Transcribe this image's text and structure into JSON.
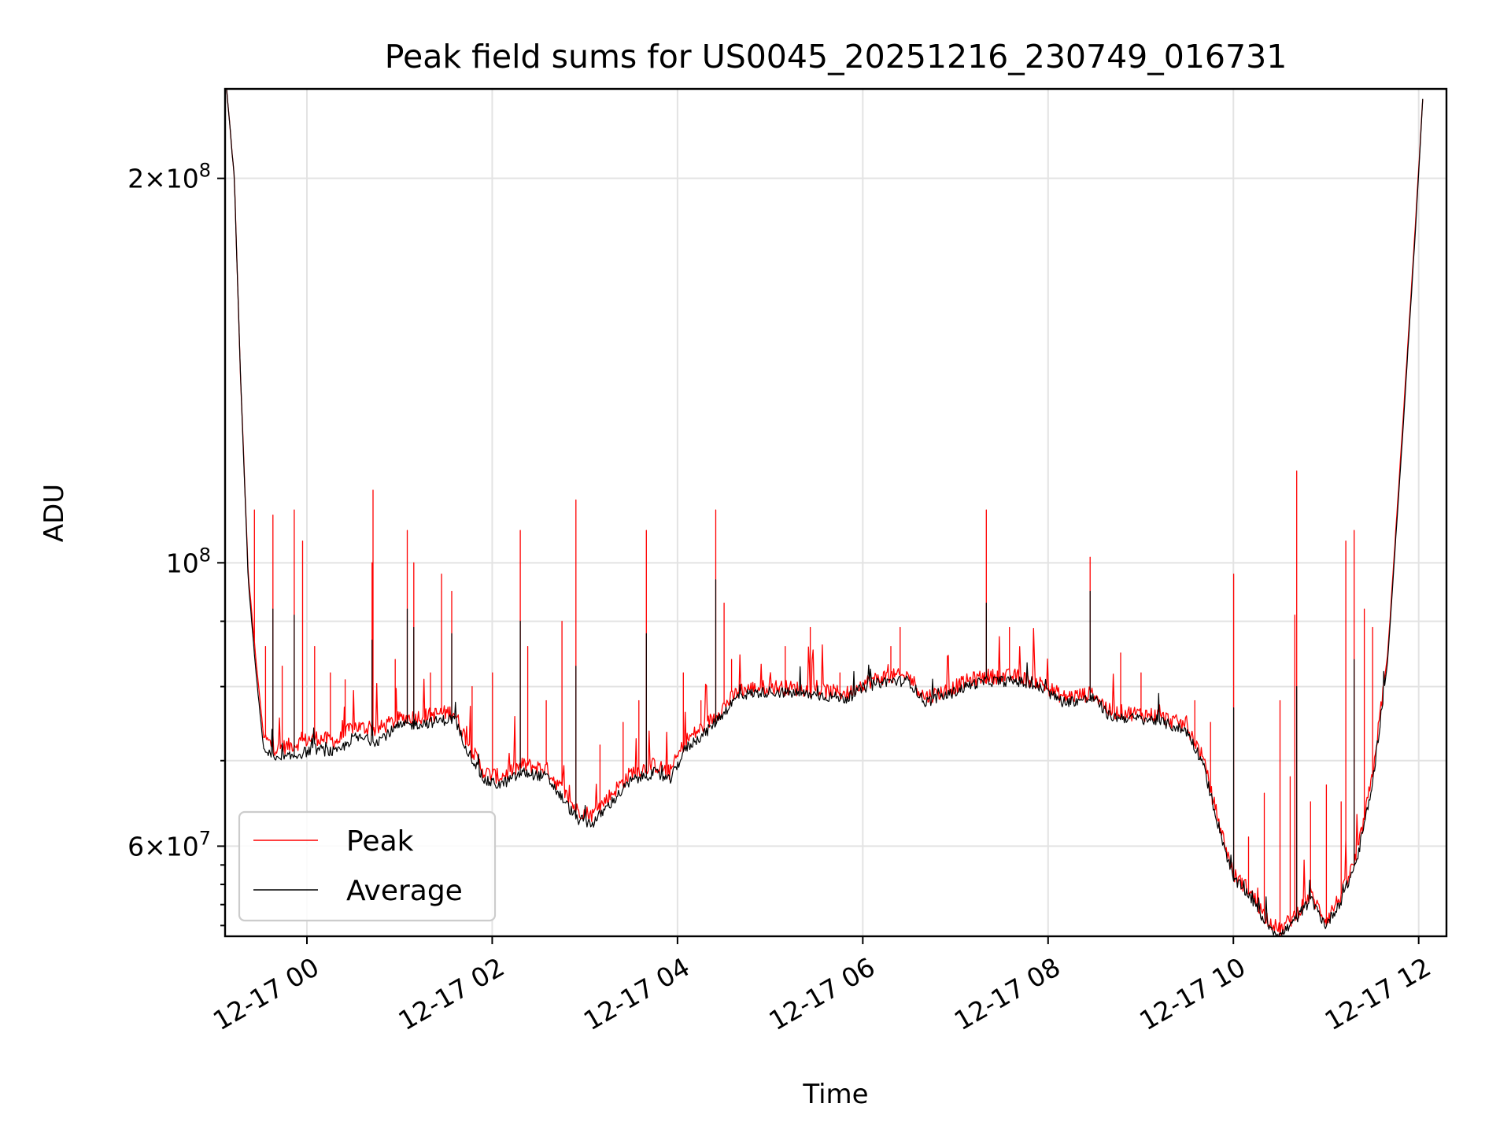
{
  "chart_data": {
    "type": "line",
    "title": "Peak field sums for US0045_20251216_230749_016731",
    "xlabel": "Time",
    "ylabel": "ADU",
    "y_scale": "log",
    "xlim": [
      "2025-12-16 23:07",
      "2025-12-17 12:18"
    ],
    "ylim": [
      51000000,
      235000000
    ],
    "grid": true,
    "legend_position": "lower-left",
    "x_ticks": [
      {
        "value": "2025-12-17 00:00",
        "label": "12-17 00"
      },
      {
        "value": "2025-12-17 02:00",
        "label": "12-17 02"
      },
      {
        "value": "2025-12-17 04:00",
        "label": "12-17 04"
      },
      {
        "value": "2025-12-17 06:00",
        "label": "12-17 06"
      },
      {
        "value": "2025-12-17 08:00",
        "label": "12-17 08"
      },
      {
        "value": "2025-12-17 10:00",
        "label": "12-17 10"
      },
      {
        "value": "2025-12-17 12:00",
        "label": "12-17 12"
      }
    ],
    "y_major_ticks": [
      {
        "value": 60000000,
        "mantissa": "6",
        "exponent": "7"
      },
      {
        "value": 100000000,
        "mantissa": "",
        "exponent": "8"
      },
      {
        "value": 200000000,
        "mantissa": "2",
        "exponent": "8"
      }
    ],
    "y_minor_ticks": [
      70000000,
      80000000,
      90000000
    ],
    "series": [
      {
        "name": "Peak",
        "color": "#ff0000",
        "baseline": [
          [
            "2025-12-16 23:08",
            235000000
          ],
          [
            "2025-12-16 23:13",
            200000000
          ],
          [
            "2025-12-16 23:17",
            140000000
          ],
          [
            "2025-12-16 23:22",
            98000000
          ],
          [
            "2025-12-16 23:27",
            84000000
          ],
          [
            "2025-12-16 23:32",
            73000000
          ],
          [
            "2025-12-16 23:40",
            71500000
          ],
          [
            "2025-12-16 23:50",
            72000000
          ],
          [
            "2025-12-17 00:05",
            73000000
          ],
          [
            "2025-12-17 00:20",
            72500000
          ],
          [
            "2025-12-17 00:30",
            74500000
          ],
          [
            "2025-12-17 00:45",
            74000000
          ],
          [
            "2025-12-17 01:00",
            75500000
          ],
          [
            "2025-12-17 01:20",
            76000000
          ],
          [
            "2025-12-17 01:35",
            76500000
          ],
          [
            "2025-12-17 01:45",
            72000000
          ],
          [
            "2025-12-17 01:55",
            68500000
          ],
          [
            "2025-12-17 02:05",
            68000000
          ],
          [
            "2025-12-17 02:20",
            69500000
          ],
          [
            "2025-12-17 02:35",
            69000000
          ],
          [
            "2025-12-17 02:45",
            66500000
          ],
          [
            "2025-12-17 02:55",
            64000000
          ],
          [
            "2025-12-17 03:05",
            63500000
          ],
          [
            "2025-12-17 03:15",
            65500000
          ],
          [
            "2025-12-17 03:30",
            68500000
          ],
          [
            "2025-12-17 03:45",
            69500000
          ],
          [
            "2025-12-17 03:55",
            68500000
          ],
          [
            "2025-12-17 04:05",
            72500000
          ],
          [
            "2025-12-17 04:20",
            75000000
          ],
          [
            "2025-12-17 04:40",
            79500000
          ],
          [
            "2025-12-17 05:00",
            80000000
          ],
          [
            "2025-12-17 05:30",
            79500000
          ],
          [
            "2025-12-17 05:50",
            79000000
          ],
          [
            "2025-12-17 06:00",
            80500000
          ],
          [
            "2025-12-17 06:15",
            81500000
          ],
          [
            "2025-12-17 06:30",
            81500000
          ],
          [
            "2025-12-17 06:40",
            78500000
          ],
          [
            "2025-12-17 06:55",
            79500000
          ],
          [
            "2025-12-17 07:10",
            81000000
          ],
          [
            "2025-12-17 07:20",
            81500000
          ],
          [
            "2025-12-17 07:40",
            81500000
          ],
          [
            "2025-12-17 07:55",
            80500000
          ],
          [
            "2025-12-17 08:10",
            78500000
          ],
          [
            "2025-12-17 08:30",
            79000000
          ],
          [
            "2025-12-17 08:40",
            76500000
          ],
          [
            "2025-12-17 09:10",
            76000000
          ],
          [
            "2025-12-17 09:30",
            74500000
          ],
          [
            "2025-12-17 09:40",
            70500000
          ],
          [
            "2025-12-17 09:50",
            63000000
          ],
          [
            "2025-12-17 10:00",
            57000000
          ],
          [
            "2025-12-17 10:10",
            55500000
          ],
          [
            "2025-12-17 10:20",
            53000000
          ],
          [
            "2025-12-17 10:30",
            51500000
          ],
          [
            "2025-12-17 10:40",
            53000000
          ],
          [
            "2025-12-17 10:50",
            55000000
          ],
          [
            "2025-12-17 11:00",
            52500000
          ],
          [
            "2025-12-17 11:10",
            55000000
          ],
          [
            "2025-12-17 11:20",
            59000000
          ],
          [
            "2025-12-17 11:30",
            68000000
          ],
          [
            "2025-12-17 11:40",
            85000000
          ],
          [
            "2025-12-17 11:50",
            130000000
          ],
          [
            "2025-12-17 11:58",
            185000000
          ],
          [
            "2025-12-17 12:03",
            235000000
          ]
        ],
        "spikes": [
          [
            "2025-12-16 23:26",
            110000000
          ],
          [
            "2025-12-16 23:33",
            86000000
          ],
          [
            "2025-12-16 23:38",
            109000000
          ],
          [
            "2025-12-16 23:44",
            83000000
          ],
          [
            "2025-12-16 23:52",
            110000000
          ],
          [
            "2025-12-16 23:57",
            104000000
          ],
          [
            "2025-12-17 00:05",
            86000000
          ],
          [
            "2025-12-17 00:15",
            82000000
          ],
          [
            "2025-12-17 00:25",
            81000000
          ],
          [
            "2025-12-17 00:42",
            100000000
          ],
          [
            "2025-12-17 00:43",
            114000000
          ],
          [
            "2025-12-17 00:57",
            84000000
          ],
          [
            "2025-12-17 01:05",
            106000000
          ],
          [
            "2025-12-17 01:09",
            100000000
          ],
          [
            "2025-12-17 01:20",
            82000000
          ],
          [
            "2025-12-17 01:27",
            98000000
          ],
          [
            "2025-12-17 01:34",
            95000000
          ],
          [
            "2025-12-17 01:47",
            80000000
          ],
          [
            "2025-12-17 02:00",
            82000000
          ],
          [
            "2025-12-17 02:18",
            106000000
          ],
          [
            "2025-12-17 02:23",
            86000000
          ],
          [
            "2025-12-17 02:35",
            78000000
          ],
          [
            "2025-12-17 02:45",
            90000000
          ],
          [
            "2025-12-17 02:54",
            112000000
          ],
          [
            "2025-12-17 03:10",
            72000000
          ],
          [
            "2025-12-17 03:25",
            75000000
          ],
          [
            "2025-12-17 03:35",
            78000000
          ],
          [
            "2025-12-17 03:40",
            106000000
          ],
          [
            "2025-12-17 04:04",
            82000000
          ],
          [
            "2025-12-17 04:15",
            78000000
          ],
          [
            "2025-12-17 04:25",
            110000000
          ],
          [
            "2025-12-17 04:30",
            93000000
          ],
          [
            "2025-12-17 04:35",
            84000000
          ],
          [
            "2025-12-17 05:10",
            86000000
          ],
          [
            "2025-12-17 05:26",
            89000000
          ],
          [
            "2025-12-17 05:45",
            82000000
          ],
          [
            "2025-12-17 06:18",
            86000000
          ],
          [
            "2025-12-17 06:24",
            89000000
          ],
          [
            "2025-12-17 07:20",
            110000000
          ],
          [
            "2025-12-17 07:35",
            89000000
          ],
          [
            "2025-12-17 08:27",
            101000000
          ],
          [
            "2025-12-17 08:47",
            85000000
          ],
          [
            "2025-12-17 09:00",
            82000000
          ],
          [
            "2025-12-17 09:35",
            78000000
          ],
          [
            "2025-12-17 09:45",
            75000000
          ],
          [
            "2025-12-17 10:00",
            98000000
          ],
          [
            "2025-12-17 10:10",
            61000000
          ],
          [
            "2025-12-17 10:20",
            66000000
          ],
          [
            "2025-12-17 10:30",
            78000000
          ],
          [
            "2025-12-17 10:37",
            68000000
          ],
          [
            "2025-12-17 10:40",
            91000000
          ],
          [
            "2025-12-17 10:41",
            118000000
          ],
          [
            "2025-12-17 10:50",
            65000000
          ],
          [
            "2025-12-17 11:00",
            67000000
          ],
          [
            "2025-12-17 11:10",
            65000000
          ],
          [
            "2025-12-17 11:13",
            104000000
          ],
          [
            "2025-12-17 11:18",
            106000000
          ],
          [
            "2025-12-17 11:25",
            92000000
          ],
          [
            "2025-12-17 11:30",
            89000000
          ]
        ]
      },
      {
        "name": "Average",
        "color": "#000000",
        "baseline": [
          [
            "2025-12-16 23:08",
            235000000
          ],
          [
            "2025-12-16 23:13",
            200000000
          ],
          [
            "2025-12-16 23:17",
            140000000
          ],
          [
            "2025-12-16 23:22",
            97000000
          ],
          [
            "2025-12-16 23:27",
            82000000
          ],
          [
            "2025-12-16 23:32",
            71500000
          ],
          [
            "2025-12-16 23:40",
            70000000
          ],
          [
            "2025-12-16 23:50",
            70500000
          ],
          [
            "2025-12-17 00:05",
            71500000
          ],
          [
            "2025-12-17 00:20",
            71000000
          ],
          [
            "2025-12-17 00:30",
            73000000
          ],
          [
            "2025-12-17 00:45",
            72500000
          ],
          [
            "2025-12-17 01:00",
            74500000
          ],
          [
            "2025-12-17 01:20",
            75000000
          ],
          [
            "2025-12-17 01:35",
            75500000
          ],
          [
            "2025-12-17 01:45",
            71000000
          ],
          [
            "2025-12-17 01:55",
            67500000
          ],
          [
            "2025-12-17 02:05",
            67000000
          ],
          [
            "2025-12-17 02:20",
            68500000
          ],
          [
            "2025-12-17 02:35",
            68000000
          ],
          [
            "2025-12-17 02:45",
            65500000
          ],
          [
            "2025-12-17 02:55",
            63000000
          ],
          [
            "2025-12-17 03:05",
            62500000
          ],
          [
            "2025-12-17 03:15",
            64500000
          ],
          [
            "2025-12-17 03:30",
            67500000
          ],
          [
            "2025-12-17 03:45",
            68500000
          ],
          [
            "2025-12-17 03:55",
            67500000
          ],
          [
            "2025-12-17 04:05",
            71500000
          ],
          [
            "2025-12-17 04:20",
            74000000
          ],
          [
            "2025-12-17 04:40",
            78800000
          ],
          [
            "2025-12-17 05:00",
            79300000
          ],
          [
            "2025-12-17 05:30",
            78800000
          ],
          [
            "2025-12-17 05:50",
            78300000
          ],
          [
            "2025-12-17 06:00",
            79800000
          ],
          [
            "2025-12-17 06:15",
            80800000
          ],
          [
            "2025-12-17 06:30",
            80800000
          ],
          [
            "2025-12-17 06:40",
            77800000
          ],
          [
            "2025-12-17 06:55",
            78800000
          ],
          [
            "2025-12-17 07:10",
            80300000
          ],
          [
            "2025-12-17 07:20",
            80800000
          ],
          [
            "2025-12-17 07:40",
            80800000
          ],
          [
            "2025-12-17 07:55",
            79800000
          ],
          [
            "2025-12-17 08:10",
            77800000
          ],
          [
            "2025-12-17 08:30",
            78300000
          ],
          [
            "2025-12-17 08:40",
            75800000
          ],
          [
            "2025-12-17 09:10",
            75300000
          ],
          [
            "2025-12-17 09:30",
            73800000
          ],
          [
            "2025-12-17 09:40",
            69800000
          ],
          [
            "2025-12-17 09:50",
            62500000
          ],
          [
            "2025-12-17 10:00",
            56500000
          ],
          [
            "2025-12-17 10:10",
            55000000
          ],
          [
            "2025-12-17 10:20",
            52500000
          ],
          [
            "2025-12-17 10:30",
            51000000
          ],
          [
            "2025-12-17 10:40",
            52500000
          ],
          [
            "2025-12-17 10:50",
            54500000
          ],
          [
            "2025-12-17 11:00",
            52000000
          ],
          [
            "2025-12-17 11:10",
            54500000
          ],
          [
            "2025-12-17 11:20",
            58500000
          ],
          [
            "2025-12-17 11:30",
            67000000
          ],
          [
            "2025-12-17 11:40",
            84000000
          ],
          [
            "2025-12-17 11:50",
            128000000
          ],
          [
            "2025-12-17 11:58",
            183000000
          ],
          [
            "2025-12-17 12:03",
            235000000
          ]
        ],
        "spikes": [
          [
            "2025-12-16 23:38",
            92000000
          ],
          [
            "2025-12-16 23:52",
            91000000
          ],
          [
            "2025-12-17 00:42",
            87000000
          ],
          [
            "2025-12-17 01:05",
            92000000
          ],
          [
            "2025-12-17 01:09",
            89000000
          ],
          [
            "2025-12-17 01:34",
            88000000
          ],
          [
            "2025-12-17 02:18",
            90000000
          ],
          [
            "2025-12-17 02:54",
            83000000
          ],
          [
            "2025-12-17 03:40",
            88000000
          ],
          [
            "2025-12-17 04:25",
            97000000
          ],
          [
            "2025-12-17 07:20",
            93000000
          ],
          [
            "2025-12-17 08:27",
            95000000
          ],
          [
            "2025-12-17 10:00",
            77000000
          ],
          [
            "2025-12-17 10:41",
            80000000
          ],
          [
            "2025-12-17 11:18",
            84000000
          ]
        ]
      }
    ],
    "legend": [
      {
        "name": "Peak",
        "color": "#ff0000"
      },
      {
        "name": "Average",
        "color": "#000000"
      }
    ]
  }
}
